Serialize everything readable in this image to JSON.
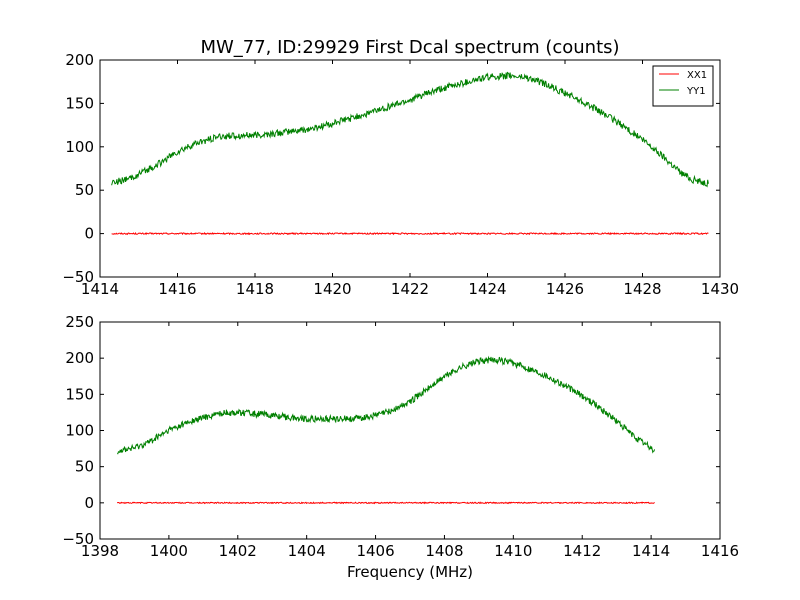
{
  "figure": {
    "title": "MW_77, ID:29929 First Dcal spectrum (counts)",
    "xlabel": "Frequency (MHz)"
  },
  "chart_data": [
    {
      "type": "line",
      "xlim": [
        1414,
        1430
      ],
      "ylim": [
        -50,
        200
      ],
      "xticks": [
        1414,
        1416,
        1418,
        1420,
        1422,
        1424,
        1426,
        1428,
        1430
      ],
      "yticks": [
        -50,
        0,
        50,
        100,
        150,
        200
      ],
      "xrange": [
        1414.3,
        1429.7
      ],
      "legend": "top-right",
      "series": [
        {
          "name": "XX1",
          "color": "#ff0000",
          "points": [
            [
              1414.3,
              0
            ],
            [
              1429.7,
              0
            ]
          ],
          "noise": 0.8
        },
        {
          "name": "YY1",
          "color": "#008000",
          "points": [
            [
              1414.3,
              59
            ],
            [
              1414.7,
              62
            ],
            [
              1415.0,
              68
            ],
            [
              1415.5,
              80
            ],
            [
              1416.0,
              94
            ],
            [
              1416.5,
              104
            ],
            [
              1417.0,
              111
            ],
            [
              1417.5,
              113
            ],
            [
              1418.0,
              113
            ],
            [
              1418.5,
              115
            ],
            [
              1419.0,
              118
            ],
            [
              1419.5,
              121
            ],
            [
              1420.0,
              127
            ],
            [
              1420.5,
              133
            ],
            [
              1421.0,
              140
            ],
            [
              1421.5,
              147
            ],
            [
              1422.0,
              154
            ],
            [
              1422.5,
              162
            ],
            [
              1423.0,
              169
            ],
            [
              1423.5,
              175
            ],
            [
              1424.0,
              180
            ],
            [
              1424.5,
              182
            ],
            [
              1425.0,
              180
            ],
            [
              1425.5,
              172
            ],
            [
              1426.0,
              162
            ],
            [
              1426.5,
              151
            ],
            [
              1427.0,
              138
            ],
            [
              1427.5,
              124
            ],
            [
              1428.0,
              108
            ],
            [
              1428.5,
              90
            ],
            [
              1429.0,
              70
            ],
            [
              1429.3,
              62
            ],
            [
              1429.7,
              58
            ]
          ],
          "noise": 4
        }
      ]
    },
    {
      "type": "line",
      "xlim": [
        1398,
        1416
      ],
      "ylim": [
        -50,
        250
      ],
      "xticks": [
        1398,
        1400,
        1402,
        1404,
        1406,
        1408,
        1410,
        1412,
        1414,
        1416
      ],
      "yticks": [
        -50,
        0,
        50,
        100,
        150,
        200,
        250
      ],
      "xrange": [
        1398.5,
        1414.1
      ],
      "series": [
        {
          "color": "#ff0000",
          "points": [
            [
              1398.5,
              0
            ],
            [
              1414.1,
              0
            ]
          ],
          "noise": 0.8
        },
        {
          "color": "#008000",
          "points": [
            [
              1398.5,
              72
            ],
            [
              1399.0,
              76
            ],
            [
              1399.5,
              86
            ],
            [
              1400.0,
              100
            ],
            [
              1400.5,
              110
            ],
            [
              1401.0,
              118
            ],
            [
              1401.5,
              124
            ],
            [
              1402.0,
              125
            ],
            [
              1402.5,
              123
            ],
            [
              1403.0,
              121
            ],
            [
              1403.5,
              118
            ],
            [
              1404.0,
              116
            ],
            [
              1404.5,
              116
            ],
            [
              1405.0,
              116
            ],
            [
              1405.5,
              117
            ],
            [
              1406.0,
              121
            ],
            [
              1406.5,
              128
            ],
            [
              1407.0,
              140
            ],
            [
              1407.5,
              157
            ],
            [
              1408.0,
              175
            ],
            [
              1408.5,
              188
            ],
            [
              1409.0,
              196
            ],
            [
              1409.5,
              198
            ],
            [
              1410.0,
              193
            ],
            [
              1410.5,
              185
            ],
            [
              1411.0,
              175
            ],
            [
              1411.5,
              162
            ],
            [
              1412.0,
              148
            ],
            [
              1412.5,
              132
            ],
            [
              1413.0,
              113
            ],
            [
              1413.5,
              92
            ],
            [
              1414.1,
              72
            ]
          ],
          "noise": 4.5
        }
      ]
    }
  ]
}
